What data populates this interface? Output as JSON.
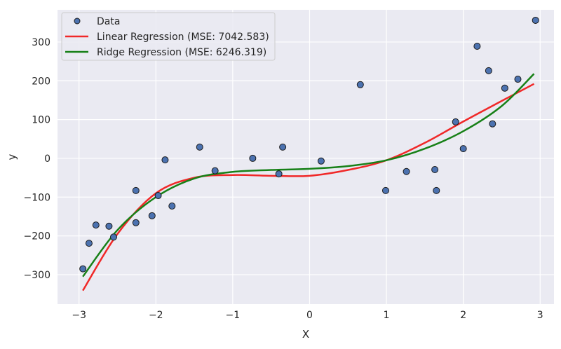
{
  "chart_data": {
    "type": "scatter",
    "title": "",
    "xlabel": "X",
    "ylabel": "y",
    "xlim": [
      -3.28,
      3.18
    ],
    "ylim": [
      -376,
      383
    ],
    "grid": true,
    "legend_position": "top-left",
    "xticks": [
      -3,
      -2,
      -1,
      0,
      1,
      2,
      3
    ],
    "xtick_labels": [
      "−3",
      "−2",
      "−1",
      "0",
      "1",
      "2",
      "3"
    ],
    "yticks": [
      -300,
      -200,
      -100,
      0,
      100,
      200,
      300
    ],
    "ytick_labels": [
      "−300",
      "−200",
      "−100",
      "0",
      "100",
      "200",
      "300"
    ],
    "colors": {
      "background": "#eaeaf2",
      "grid": "#ffffff",
      "points": "#4c72b0",
      "linear": "#f02828",
      "ridge": "#178017"
    },
    "series": [
      {
        "name": "Data",
        "type": "scatter",
        "x": [
          -2.95,
          -2.87,
          -2.78,
          -2.61,
          -2.55,
          -2.26,
          -2.26,
          -2.05,
          -1.97,
          -1.88,
          -1.79,
          -1.43,
          -1.23,
          -0.74,
          -0.4,
          -0.35,
          0.15,
          0.66,
          0.99,
          1.26,
          1.63,
          1.65,
          1.9,
          2.0,
          2.18,
          2.33,
          2.38,
          2.54,
          2.71,
          2.94
        ],
        "y": [
          -285,
          -219,
          -172,
          -175,
          -203,
          -83,
          -166,
          -148,
          -96,
          -4,
          -123,
          29,
          -32,
          0,
          -40,
          29,
          -7,
          190,
          -83,
          -34,
          -29,
          -83,
          94,
          25,
          289,
          226,
          89,
          181,
          204,
          356
        ]
      },
      {
        "name": "Linear Regression (MSE: 7042.583)",
        "type": "line",
        "x": [
          -2.95,
          -2.5,
          -2,
          -1.5,
          -1,
          -0.5,
          0,
          0.5,
          1,
          1.5,
          2,
          2.5,
          2.92
        ],
        "y": [
          -341,
          -195,
          -90,
          -50,
          -43,
          -45,
          -45,
          -30,
          -5,
          40,
          95,
          148,
          192
        ]
      },
      {
        "name": "Ridge Regression (MSE: 6246.319)",
        "type": "line",
        "x": [
          -2.95,
          -2.5,
          -2,
          -1.5,
          -1,
          -0.5,
          0,
          0.5,
          1,
          1.5,
          2,
          2.5,
          2.92
        ],
        "y": [
          -305,
          -185,
          -100,
          -52,
          -35,
          -30,
          -27,
          -20,
          -5,
          25,
          70,
          135,
          218
        ]
      }
    ]
  }
}
